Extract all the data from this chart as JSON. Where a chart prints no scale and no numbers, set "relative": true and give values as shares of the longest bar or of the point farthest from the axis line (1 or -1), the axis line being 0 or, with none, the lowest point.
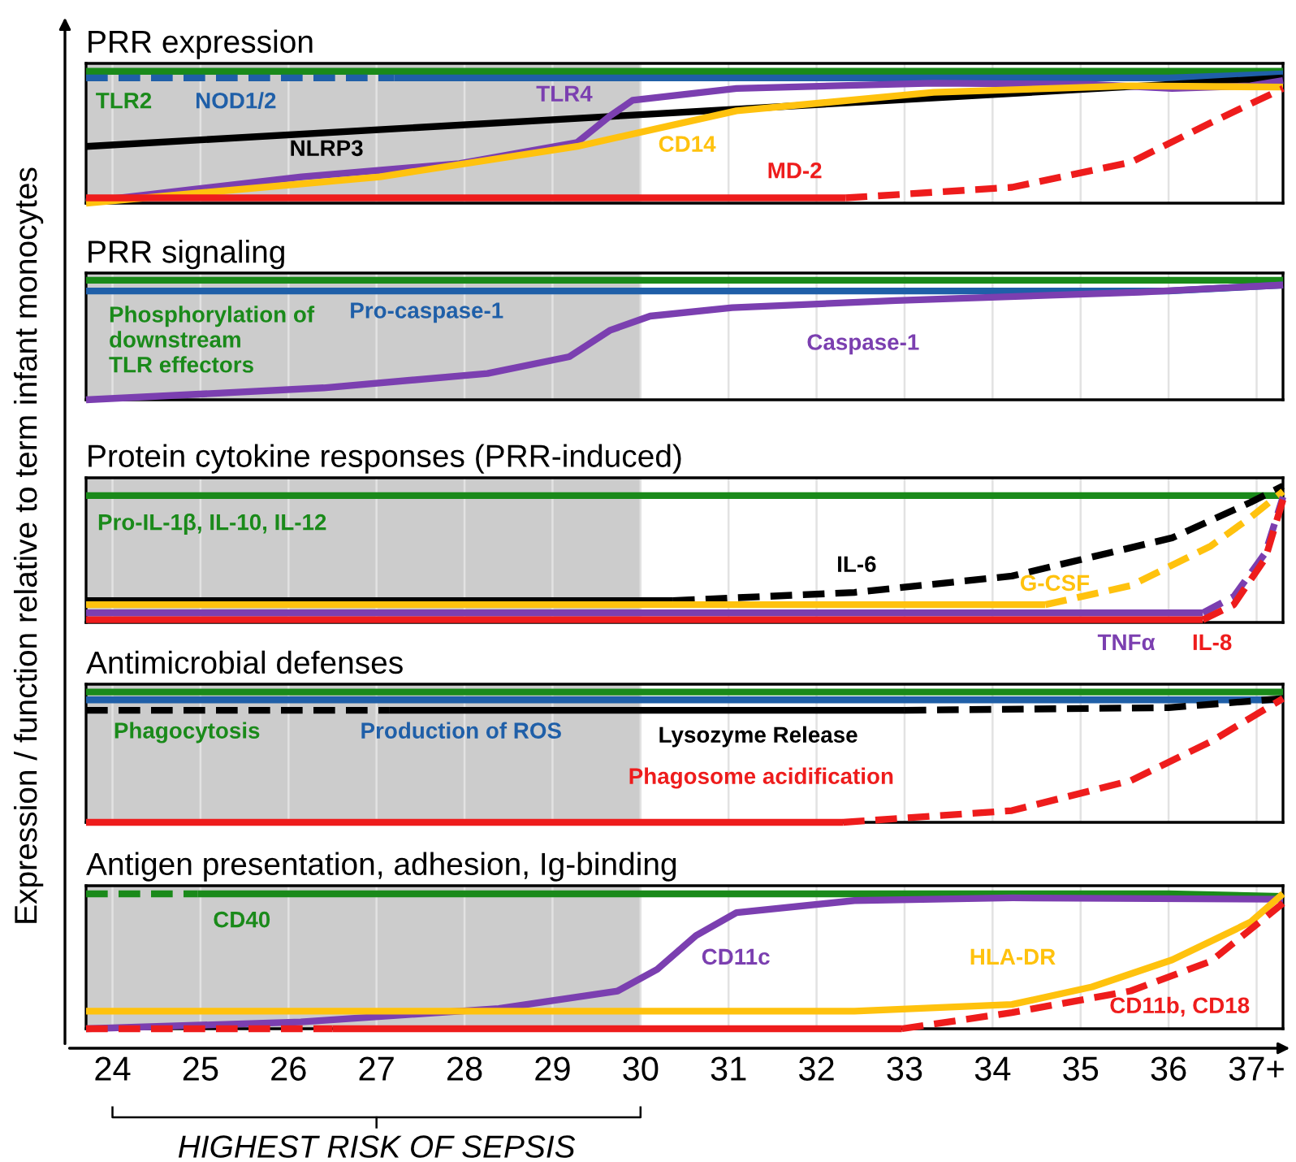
{
  "chart_data": [
    {
      "type": "line",
      "title": "PRR expression",
      "relative": true,
      "xlim": [
        23.7,
        37.3
      ],
      "xticks": [
        24,
        25,
        26,
        27,
        28,
        29,
        30,
        31,
        32,
        33,
        34,
        35,
        36,
        37
      ],
      "tick_labels": false,
      "grid": "x",
      "legend": false,
      "bands": [
        {
          "axis": "x",
          "from": 23.7,
          "to": 30,
          "color": "#cccccc"
        }
      ],
      "series": [
        {
          "name": "TLR2",
          "color": "#1a8a1a",
          "x": [
            23.7,
            37.3
          ],
          "values": [
            1,
            1
          ]
        },
        {
          "color": "#1f5fa8",
          "line_style": "dashed",
          "x": [
            23.7,
            27.2
          ],
          "values": [
            0.95,
            0.95
          ]
        },
        {
          "name": "NOD1/2",
          "color": "#1f5fa8",
          "x": [
            27.2,
            36.0,
            37.3
          ],
          "values": [
            0.95,
            0.95,
            0.98
          ]
        },
        {
          "name": "NLRP3",
          "color": "#000000",
          "x": [
            23.7,
            37.3
          ],
          "values": [
            0.43,
            0.95
          ]
        },
        {
          "name": "TLR4",
          "color": "#7b3fb0",
          "x": [
            23.7,
            26.15,
            27.94,
            29.28,
            29.65,
            29.91,
            31.09,
            33.33,
            35.13,
            36.04,
            36.93,
            37.3
          ],
          "values": [
            0.01,
            0.2,
            0.3,
            0.46,
            0.66,
            0.78,
            0.87,
            0.91,
            0.9,
            0.87,
            0.89,
            0.93
          ]
        },
        {
          "name": "CD14",
          "color": "#ffc20e",
          "x": [
            23.7,
            27.04,
            29.28,
            31.09,
            33.33,
            35.57,
            37.3
          ],
          "values": [
            0,
            0.2,
            0.43,
            0.7,
            0.84,
            0.89,
            0.88
          ]
        },
        {
          "name": "MD-2",
          "color": "#ee1c1c",
          "x": [
            23.7,
            32.33
          ],
          "values": [
            0.04,
            0.04
          ]
        },
        {
          "color": "#ee1c1c",
          "line_style": "dashed",
          "x": [
            32.33,
            34.22,
            35.57,
            36.48,
            37.3
          ],
          "values": [
            0.04,
            0.12,
            0.31,
            0.61,
            0.87
          ]
        }
      ]
    },
    {
      "type": "line",
      "title": "PRR signaling",
      "relative": true,
      "xlim": [
        23.7,
        37.3
      ],
      "xticks": [
        24,
        25,
        26,
        27,
        28,
        29,
        30,
        31,
        32,
        33,
        34,
        35,
        36,
        37
      ],
      "tick_labels": false,
      "grid": "x",
      "legend": false,
      "bands": [
        {
          "axis": "x",
          "from": 23.7,
          "to": 30,
          "color": "#cccccc"
        }
      ],
      "series": [
        {
          "name": "Phosphorylation of\ndownstream\nTLR effectors",
          "color": "#1a8a1a",
          "x": [
            23.7,
            37.3
          ],
          "values": [
            1,
            1
          ]
        },
        {
          "name": "Pro-caspase-1",
          "color": "#1f5fa8",
          "x": [
            23.7,
            36.0,
            37.3
          ],
          "values": [
            0.91,
            0.91,
            0.96
          ]
        },
        {
          "name": "Caspase-1",
          "color": "#7b3fb0",
          "x": [
            23.7,
            26.4,
            28.26,
            29.19,
            29.65,
            30.11,
            31.04,
            32.9,
            35.67,
            37.3
          ],
          "values": [
            0,
            0.1,
            0.22,
            0.36,
            0.58,
            0.7,
            0.77,
            0.83,
            0.9,
            0.96
          ]
        }
      ]
    },
    {
      "type": "line",
      "title": "Protein cytokine responses (PRR-induced)",
      "ylabel": "Expression / function relative to term infant monocytes",
      "relative": true,
      "xlim": [
        23.7,
        37.3
      ],
      "xticks": [
        24,
        25,
        26,
        27,
        28,
        29,
        30,
        31,
        32,
        33,
        34,
        35,
        36,
        37
      ],
      "tick_labels": false,
      "grid": "x",
      "legend": false,
      "bands": [
        {
          "axis": "x",
          "from": 23.7,
          "to": 30,
          "color": "#cccccc"
        }
      ],
      "series": [
        {
          "name": "Pro-IL-1β, IL-10, IL-12",
          "color": "#1a8a1a",
          "x": [
            23.7,
            37.3
          ],
          "values": [
            0.93,
            0.93
          ]
        },
        {
          "name": "IL-6",
          "color": "#000000",
          "x": [
            23.7,
            30.37
          ],
          "values": [
            0.16,
            0.16
          ]
        },
        {
          "color": "#000000",
          "line_style": "dashed",
          "x": [
            30.37,
            32.43,
            34.22,
            36.04,
            36.93,
            37.3
          ],
          "values": [
            0.16,
            0.22,
            0.34,
            0.62,
            0.88,
            1
          ]
        },
        {
          "name": "G-CSF",
          "color": "#ffc20e",
          "x": [
            23.7,
            34.6
          ],
          "values": [
            0.13,
            0.13
          ]
        },
        {
          "color": "#ffc20e",
          "line_style": "dashed",
          "x": [
            34.6,
            35.57,
            36.48,
            36.93,
            37.3
          ],
          "values": [
            0.13,
            0.27,
            0.56,
            0.77,
            0.96
          ]
        },
        {
          "name": "TNFα",
          "color": "#7b3fb0",
          "x": [
            23.7,
            36.39
          ],
          "values": [
            0.07,
            0.07
          ]
        },
        {
          "color": "#7b3fb0",
          "line_style": "dashed",
          "x": [
            36.39,
            36.74,
            37.1,
            37.3
          ],
          "values": [
            0.07,
            0.19,
            0.51,
            0.92
          ]
        },
        {
          "name": "IL-8",
          "color": "#ee1c1c",
          "x": [
            23.7,
            36.39
          ],
          "values": [
            0.02,
            0.02
          ]
        },
        {
          "color": "#ee1c1c",
          "line_style": "dashed",
          "x": [
            36.39,
            36.74,
            37.1,
            37.3
          ],
          "values": [
            0.02,
            0.13,
            0.47,
            0.9
          ]
        }
      ]
    },
    {
      "type": "line",
      "title": "Antimicrobial defenses",
      "relative": true,
      "xlim": [
        23.7,
        37.3
      ],
      "xticks": [
        24,
        25,
        26,
        27,
        28,
        29,
        30,
        31,
        32,
        33,
        34,
        35,
        36,
        37
      ],
      "tick_labels": false,
      "grid": "x",
      "legend": false,
      "bands": [
        {
          "axis": "x",
          "from": 23.7,
          "to": 30,
          "color": "#cccccc"
        }
      ],
      "series": [
        {
          "name": "Phagocytosis",
          "color": "#1a8a1a",
          "x": [
            23.7,
            37.3
          ],
          "values": [
            1,
            1
          ]
        },
        {
          "name": "Production of ROS",
          "color": "#1f5fa8",
          "x": [
            23.7,
            37.3
          ],
          "values": [
            0.94,
            0.94
          ]
        },
        {
          "color": "#000000",
          "line_style": "dashed",
          "x": [
            23.7,
            27.15
          ],
          "values": [
            0.86,
            0.86
          ]
        },
        {
          "name": "Lysozyme Release",
          "color": "#000000",
          "x": [
            27.15,
            33.0
          ],
          "values": [
            0.86,
            0.86
          ]
        },
        {
          "color": "#000000",
          "line_style": "dashed",
          "x": [
            33.0,
            36.0,
            37.3
          ],
          "values": [
            0.86,
            0.88,
            0.95
          ]
        },
        {
          "name": "Phagosome acidification",
          "color": "#ee1c1c",
          "x": [
            23.7,
            32.3
          ],
          "values": [
            0,
            0
          ]
        },
        {
          "color": "#ee1c1c",
          "line_style": "dashed",
          "x": [
            32.3,
            34.22,
            35.57,
            36.48,
            37.3
          ],
          "values": [
            0,
            0.09,
            0.32,
            0.62,
            0.95
          ]
        }
      ]
    },
    {
      "type": "line",
      "title": "Antigen presentation, adhesion, Ig-binding",
      "relative": true,
      "xlim": [
        23.7,
        37.3
      ],
      "xticks": [
        24,
        25,
        26,
        27,
        28,
        29,
        30,
        31,
        32,
        33,
        34,
        35,
        36,
        {
          "value": 37,
          "label": "37+"
        }
      ],
      "tick_labels": "x",
      "grid": "x",
      "legend": false,
      "bands": [
        {
          "axis": "x",
          "from": 23.7,
          "to": 30,
          "color": "#cccccc"
        }
      ],
      "series": [
        {
          "color": "#1a8a1a",
          "line_style": "dashed",
          "x": [
            23.7,
            24.97
          ],
          "values": [
            1,
            1
          ]
        },
        {
          "name": "CD40",
          "color": "#1a8a1a",
          "x": [
            24.97,
            36.0,
            37.3
          ],
          "values": [
            1,
            1,
            0.98
          ]
        },
        {
          "name": "CD11c",
          "color": "#7b3fb0",
          "x": [
            23.7,
            26.14,
            28.39,
            29.74,
            30.19,
            30.63,
            31.09,
            32.43,
            34.23,
            37.3
          ],
          "values": [
            0,
            0.05,
            0.15,
            0.28,
            0.44,
            0.69,
            0.86,
            0.95,
            0.97,
            0.96
          ]
        },
        {
          "name": "HLA-DR",
          "color": "#ffc20e",
          "x": [
            23.7,
            32.43,
            34.22,
            35.13,
            36.04,
            36.93,
            37.3
          ],
          "values": [
            0.13,
            0.13,
            0.18,
            0.31,
            0.51,
            0.79,
            1
          ]
        },
        {
          "color": "#ee1c1c",
          "line_style": "dashed",
          "x": [
            23.7,
            26.5
          ],
          "values": [
            0,
            0
          ]
        },
        {
          "name": "CD11b, CD18",
          "color": "#ee1c1c",
          "x": [
            26.5,
            32.97
          ],
          "values": [
            0,
            0
          ]
        },
        {
          "color": "#ee1c1c",
          "line_style": "dashed",
          "x": [
            32.97,
            34.22,
            35.57,
            36.48,
            37.3
          ],
          "values": [
            0,
            0.12,
            0.28,
            0.5,
            0.93
          ]
        }
      ],
      "annotations": [
        "HIGHEST RISK OF SEPSIS"
      ]
    }
  ]
}
